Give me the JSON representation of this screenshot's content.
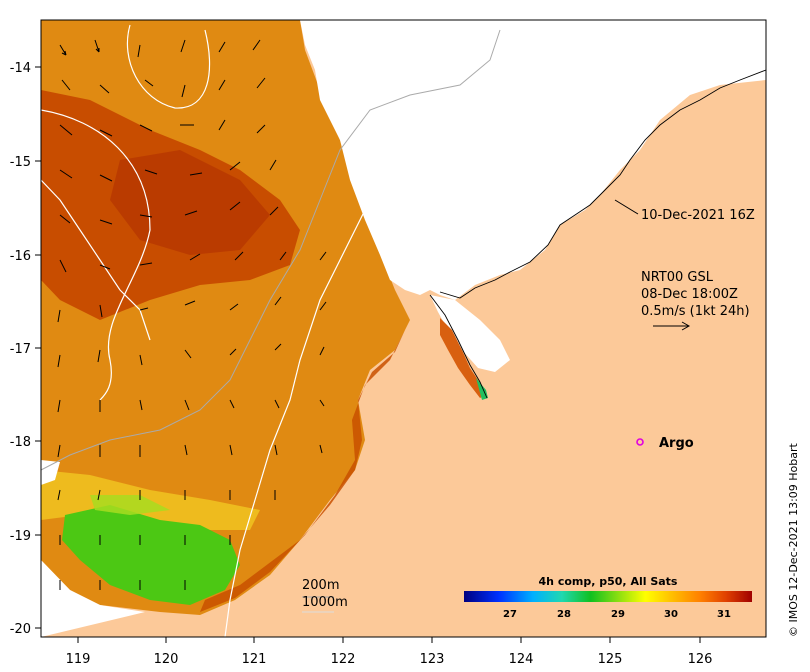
{
  "map": {
    "axes": {
      "lon_ticks": [
        "119",
        "120",
        "121",
        "122",
        "123",
        "124",
        "125",
        "126"
      ],
      "lat_ticks": [
        "-14",
        "-15",
        "-16",
        "-17",
        "-18",
        "-19",
        "-20"
      ]
    },
    "timestamp_label": "10-Dec-2021 16Z",
    "current_info": {
      "line1": "NRT00 GSL",
      "line2": "08-Dec 18:00Z",
      "line3": "0.5m/s (1kt 24h)"
    },
    "argo_label": "Argo",
    "isobath_legend": {
      "shallow": "200m",
      "deep": "1000m"
    },
    "colorbar": {
      "title": "4h comp, p50, All Sats",
      "tick_labels": [
        "27",
        "28",
        "29",
        "30",
        "31"
      ]
    },
    "credit": "© IMOS 12-Dec-2021 13:09 Hobart",
    "colors": {
      "land": "#fcc999",
      "sst_warm": "#c64a00",
      "sst_mid": "#e8820a",
      "sst_cool": "#4cc814",
      "arrow": "#000000",
      "argo": "#e000e0"
    }
  }
}
